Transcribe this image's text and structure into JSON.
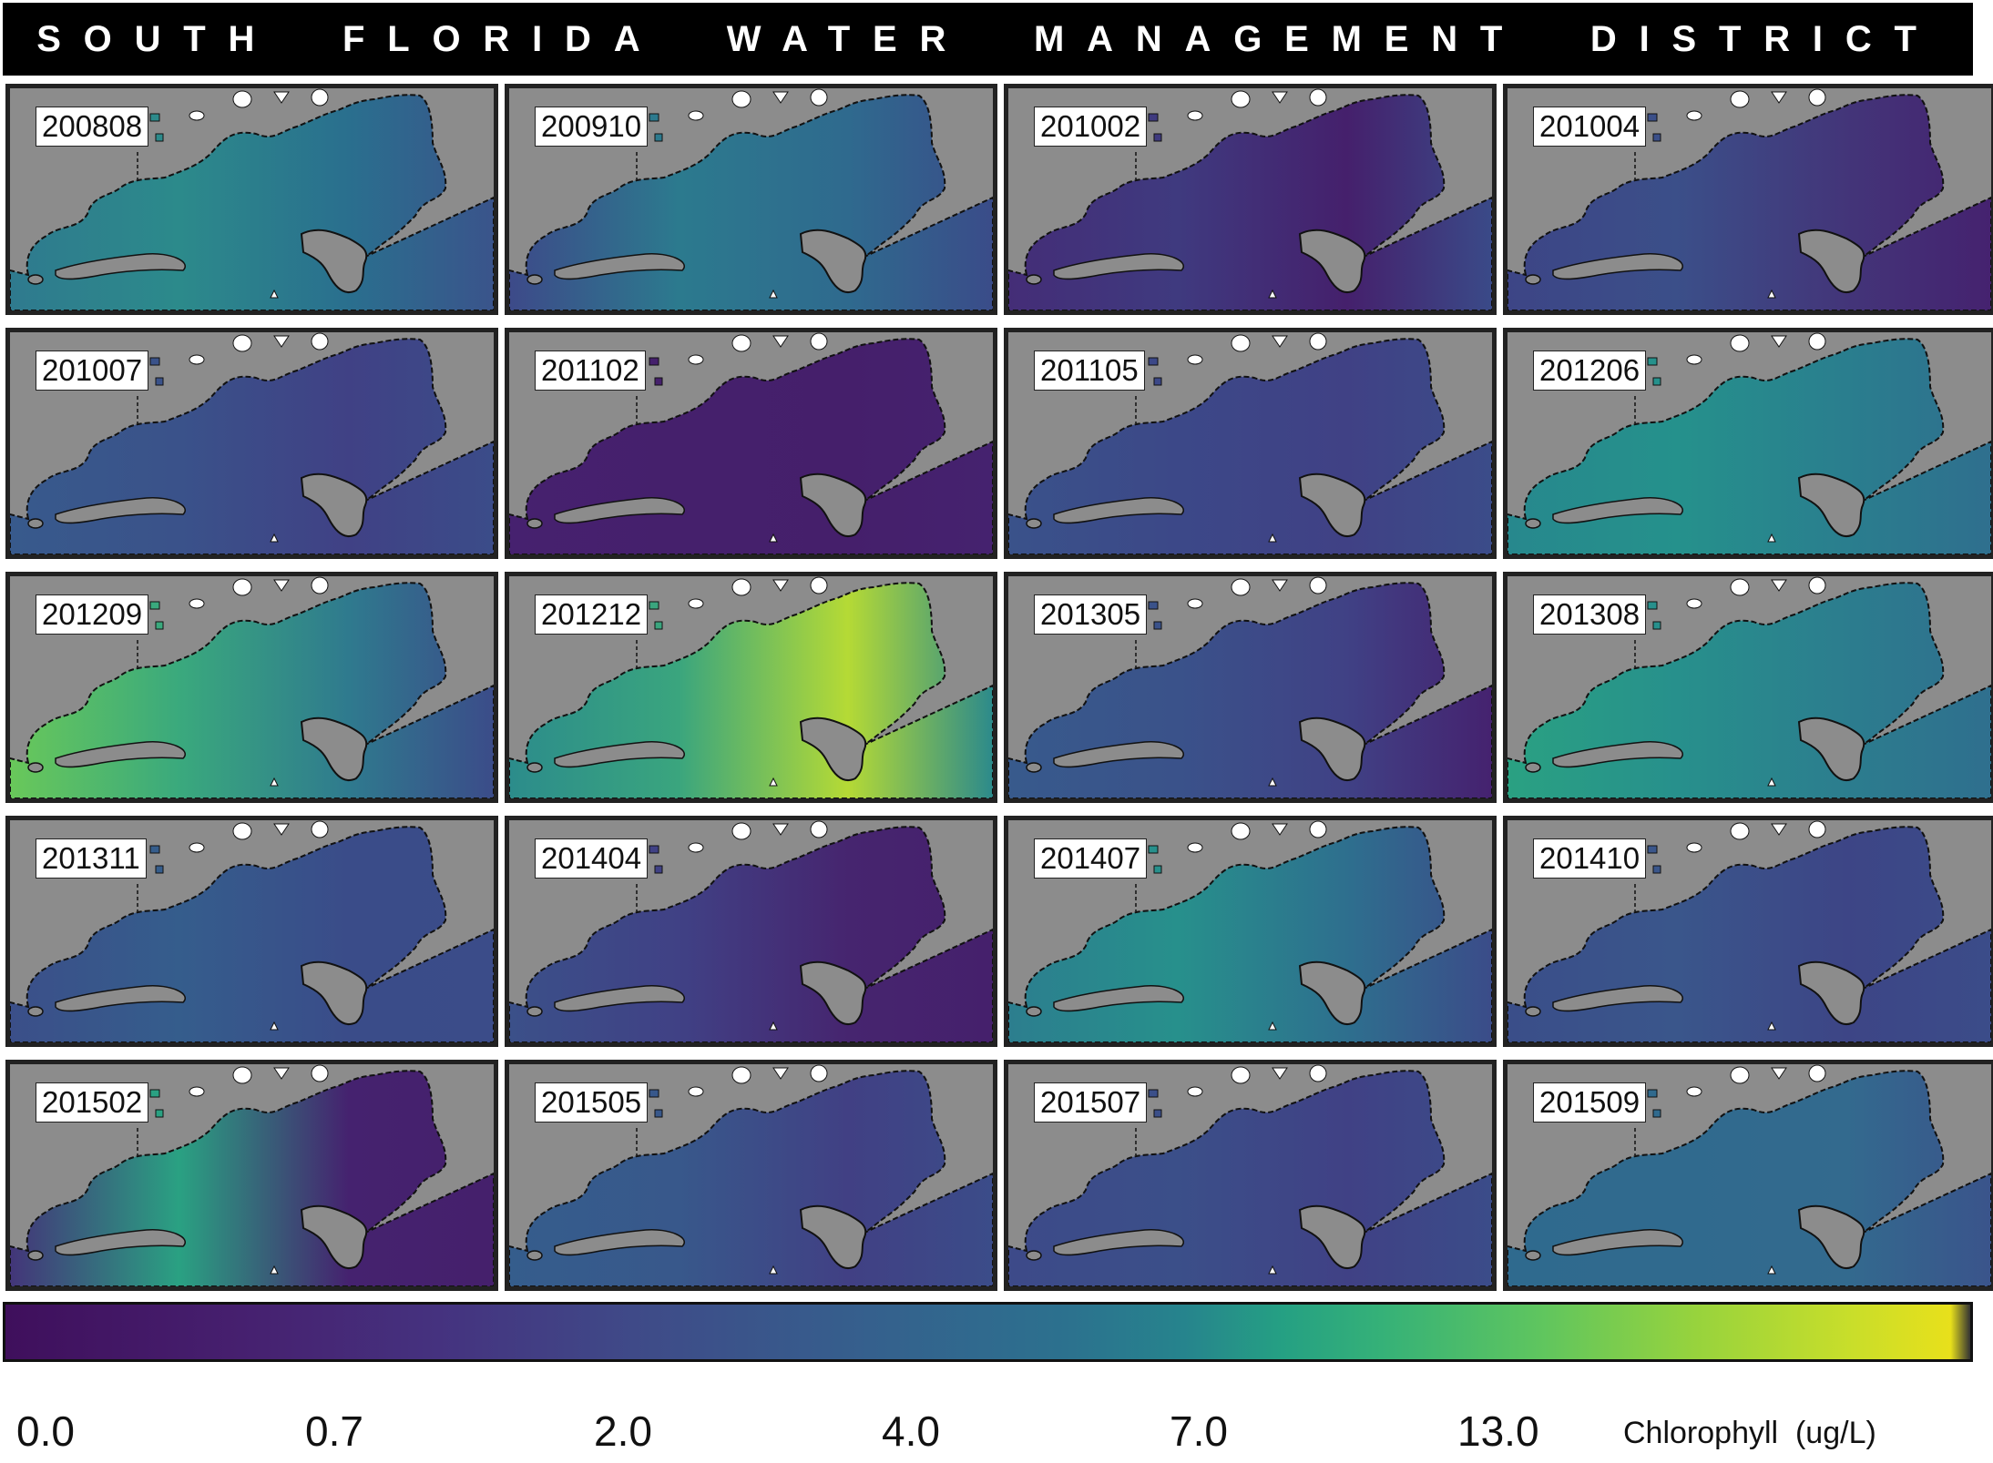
{
  "header": {
    "title": "SOUTH  FLORIDA  WATER  MANAGEMENT  DISTRICT"
  },
  "panels": [
    {
      "label": "200808",
      "colors": [
        "#2f7a8e",
        "#2c8a8b",
        "#2a6f8e",
        "#3a548b"
      ]
    },
    {
      "label": "200910",
      "colors": [
        "#3d4a89",
        "#2c7a8e",
        "#2f6a8e",
        "#3a4c89"
      ]
    },
    {
      "label": "201002",
      "colors": [
        "#442d77",
        "#3f3a7f",
        "#45206c",
        "#3a4a88"
      ]
    },
    {
      "label": "201004",
      "colors": [
        "#3d4586",
        "#3b4f89",
        "#433579",
        "#45226f"
      ]
    },
    {
      "label": "201007",
      "colors": [
        "#385a8c",
        "#3a528a",
        "#404185",
        "#3b4c89"
      ]
    },
    {
      "label": "201102",
      "colors": [
        "#46216f",
        "#45206c",
        "#451f6b",
        "#45226f"
      ]
    },
    {
      "label": "201105",
      "colors": [
        "#3a528a",
        "#3c4888",
        "#404185",
        "#3b4c89"
      ]
    },
    {
      "label": "201206",
      "colors": [
        "#27888d",
        "#25918c",
        "#2a7e8e",
        "#2f6f8e"
      ]
    },
    {
      "label": "201209",
      "colors": [
        "#69c85a",
        "#3aa97d",
        "#2f7a8e",
        "#3b4c89"
      ]
    },
    {
      "label": "201212",
      "colors": [
        "#2c8c8b",
        "#3aa57e",
        "#b5da35",
        "#2c8a8b"
      ]
    },
    {
      "label": "201305",
      "colors": [
        "#385a8c",
        "#3a528a",
        "#404185",
        "#45226f"
      ]
    },
    {
      "label": "201308",
      "colors": [
        "#2aa182",
        "#27908c",
        "#2c7d8e",
        "#2f6f8e"
      ]
    },
    {
      "label": "201311",
      "colors": [
        "#3b4f89",
        "#355d8c",
        "#3a4c89",
        "#3b4c89"
      ]
    },
    {
      "label": "201404",
      "colors": [
        "#3b5089",
        "#404185",
        "#46256f",
        "#45206c"
      ]
    },
    {
      "label": "201407",
      "colors": [
        "#2c7e8e",
        "#27908c",
        "#2e6f8e",
        "#3b4c89"
      ]
    },
    {
      "label": "201410",
      "colors": [
        "#3a4e89",
        "#3a568b",
        "#3d4586",
        "#3b4c89"
      ]
    },
    {
      "label": "201502",
      "colors": [
        "#433579",
        "#2aa182",
        "#45226f",
        "#45206c"
      ]
    },
    {
      "label": "201505",
      "colors": [
        "#355d8c",
        "#38588b",
        "#414084",
        "#3b4c89"
      ]
    },
    {
      "label": "201507",
      "colors": [
        "#3d4a89",
        "#3b4f89",
        "#404185",
        "#3b4c89"
      ]
    },
    {
      "label": "201509",
      "colors": [
        "#2f6a8e",
        "#306a8e",
        "#336a8e",
        "#3a548b"
      ]
    }
  ],
  "colorbar": {
    "ticks": [
      "0.0",
      "0.7",
      "2.0",
      "4.0",
      "7.0",
      "13.0"
    ],
    "units": "Chlorophyll  (ug/L)"
  }
}
